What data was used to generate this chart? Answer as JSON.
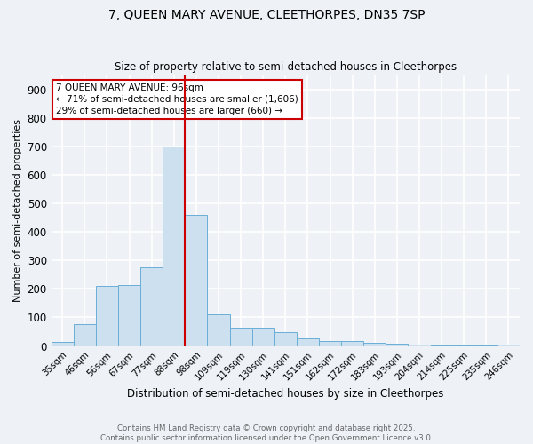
{
  "title_line1": "7, QUEEN MARY AVENUE, CLEETHORPES, DN35 7SP",
  "title_line2": "Size of property relative to semi-detached houses in Cleethorpes",
  "xlabel": "Distribution of semi-detached houses by size in Cleethorpes",
  "ylabel": "Number of semi-detached properties",
  "categories": [
    "35sqm",
    "46sqm",
    "56sqm",
    "67sqm",
    "77sqm",
    "88sqm",
    "98sqm",
    "109sqm",
    "119sqm",
    "130sqm",
    "141sqm",
    "151sqm",
    "162sqm",
    "172sqm",
    "183sqm",
    "193sqm",
    "204sqm",
    "214sqm",
    "225sqm",
    "235sqm",
    "246sqm"
  ],
  "values": [
    13,
    75,
    212,
    213,
    275,
    700,
    460,
    110,
    63,
    63,
    50,
    27,
    17,
    16,
    10,
    8,
    4,
    2,
    2,
    1,
    5
  ],
  "bar_color": "#cce0f0",
  "bar_edge_color": "#6aaed6",
  "vline_x": 5.5,
  "vline_color": "#cc0000",
  "annotation_title": "7 QUEEN MARY AVENUE: 96sqm",
  "annotation_line1": "← 71% of semi-detached houses are smaller (1,606)",
  "annotation_line2": "29% of semi-detached houses are larger (660) →",
  "annotation_box_color": "#ffffff",
  "annotation_box_edge": "#cc0000",
  "ylim": [
    0,
    950
  ],
  "yticks": [
    0,
    100,
    200,
    300,
    400,
    500,
    600,
    700,
    800,
    900
  ],
  "footer_line1": "Contains HM Land Registry data © Crown copyright and database right 2025.",
  "footer_line2": "Contains public sector information licensed under the Open Government Licence v3.0.",
  "bg_color": "#eef2f7",
  "plot_bg_color": "#eef2f7",
  "grid_color": "#ffffff"
}
